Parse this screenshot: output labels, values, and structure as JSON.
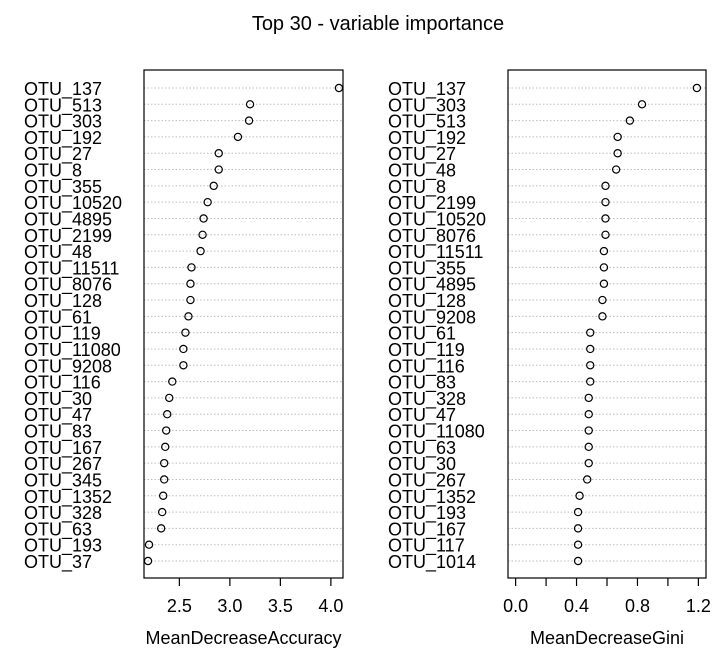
{
  "title": "Top 30 - variable importance",
  "chart_data": [
    {
      "type": "scatter",
      "subtype": "dotchart",
      "xlabel": "MeanDecreaseAccuracy",
      "xlim": [
        2.15,
        4.12
      ],
      "xticks": [
        2.5,
        3.0,
        3.5,
        4.0
      ],
      "xtick_labels": [
        "2.5",
        "3.0",
        "3.5",
        "4.0"
      ],
      "grid": "dotted-horizontal",
      "marker": "open-circle",
      "categories": [
        "OTU_137",
        "OTU_513",
        "OTU_303",
        "OTU_192",
        "OTU_27",
        "OTU_8",
        "OTU_355",
        "OTU_10520",
        "OTU_4895",
        "OTU_2199",
        "OTU_48",
        "OTU_11511",
        "OTU_8076",
        "OTU_128",
        "OTU_61",
        "OTU_119",
        "OTU_11080",
        "OTU_9208",
        "OTU_116",
        "OTU_30",
        "OTU_47",
        "OTU_83",
        "OTU_167",
        "OTU_267",
        "OTU_345",
        "OTU_1352",
        "OTU_328",
        "OTU_63",
        "OTU_193",
        "OTU_37"
      ],
      "values": [
        4.08,
        3.2,
        3.19,
        3.08,
        2.89,
        2.89,
        2.84,
        2.78,
        2.74,
        2.73,
        2.71,
        2.62,
        2.61,
        2.61,
        2.59,
        2.56,
        2.54,
        2.54,
        2.43,
        2.4,
        2.38,
        2.37,
        2.36,
        2.35,
        2.35,
        2.34,
        2.33,
        2.32,
        2.2,
        2.19
      ]
    },
    {
      "type": "scatter",
      "subtype": "dotchart",
      "xlabel": "MeanDecreaseGini",
      "xlim": [
        -0.05,
        1.25
      ],
      "xticks": [
        0.0,
        0.2,
        0.4,
        0.6,
        0.8,
        1.0,
        1.2
      ],
      "xtick_labels": [
        "0.0",
        "",
        "0.4",
        "",
        "0.8",
        "",
        "1.2"
      ],
      "grid": "dotted-horizontal",
      "marker": "open-circle",
      "categories": [
        "OTU_137",
        "OTU_303",
        "OTU_513",
        "OTU_192",
        "OTU_27",
        "OTU_48",
        "OTU_8",
        "OTU_2199",
        "OTU_10520",
        "OTU_8076",
        "OTU_11511",
        "OTU_355",
        "OTU_4895",
        "OTU_128",
        "OTU_9208",
        "OTU_61",
        "OTU_119",
        "OTU_116",
        "OTU_83",
        "OTU_328",
        "OTU_47",
        "OTU_11080",
        "OTU_63",
        "OTU_30",
        "OTU_267",
        "OTU_1352",
        "OTU_193",
        "OTU_167",
        "OTU_117",
        "OTU_1014"
      ],
      "values": [
        1.19,
        0.83,
        0.75,
        0.67,
        0.67,
        0.66,
        0.59,
        0.59,
        0.59,
        0.59,
        0.58,
        0.58,
        0.58,
        0.57,
        0.57,
        0.49,
        0.49,
        0.49,
        0.49,
        0.48,
        0.48,
        0.48,
        0.48,
        0.48,
        0.47,
        0.42,
        0.41,
        0.41,
        0.41,
        0.41
      ]
    }
  ]
}
